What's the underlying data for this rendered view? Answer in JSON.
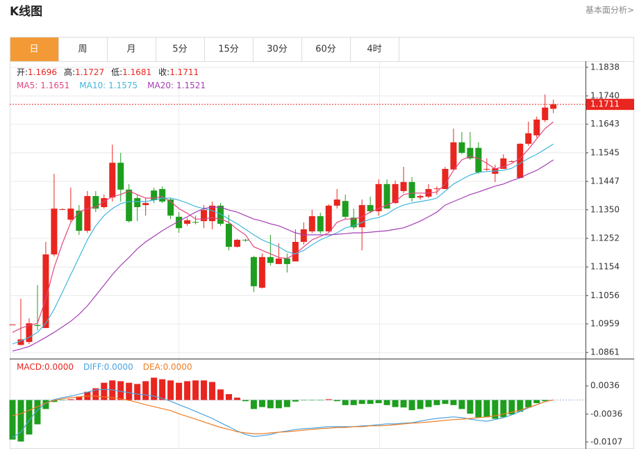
{
  "header": {
    "title": "K线图",
    "link": "基本面分析>"
  },
  "tabs": [
    "日",
    "周",
    "月",
    "5分",
    "15分",
    "30分",
    "60分",
    "4时"
  ],
  "ohlc_info": [
    {
      "label": "开:",
      "value": "1.1696"
    },
    {
      "label": "高:",
      "value": "1.1727"
    },
    {
      "label": "低:",
      "value": "1.1681"
    },
    {
      "label": "收:",
      "value": "1.1711"
    }
  ],
  "chart_data": [
    {
      "type": "candlestick",
      "up_color": "#e8251f",
      "down_color": "#1e9e1e",
      "grid": true,
      "ylim": [
        1.084,
        1.1859
      ],
      "yticks": [
        1.1838,
        {
          "value": 1.174,
          "label": "1.1740"
        },
        1.1643,
        1.1545,
        1.1447,
        {
          "value": 1.135,
          "label": "1.1350"
        },
        1.1252,
        1.1154,
        1.1056,
        1.0959,
        1.0861
      ],
      "price_line": 1.1711,
      "open": [
        1.0957,
        1.0887,
        1.0897,
        1.0955,
        1.0945,
        1.1197,
        1.1352,
        1.1316,
        1.1347,
        1.1278,
        1.1397,
        1.1359,
        1.1392,
        1.1511,
        1.1419,
        1.139,
        1.1366,
        1.1416,
        1.1421,
        1.1385,
        1.1326,
        1.1302,
        1.1308,
        1.1311,
        1.1311,
        1.1364,
        1.1302,
        1.1223,
        1.1247,
        1.1188,
        1.1083,
        1.1188,
        1.1164,
        1.1183,
        1.1173,
        1.124,
        1.1276,
        1.1328,
        1.1276,
        1.1364,
        1.138,
        1.1323,
        1.129,
        1.1366,
        1.1345,
        1.1438,
        1.1373,
        1.1414,
        1.1445,
        1.1392,
        1.1395,
        1.1423,
        1.1421,
        1.1488,
        1.1581,
        1.1562,
        1.1562,
        1.1488,
        1.1473,
        1.149,
        1.1516,
        1.1459,
        1.1576,
        1.1605,
        1.1657,
        1.1696
      ],
      "high": [
        1.0957,
        1.1045,
        1.0978,
        1.1092,
        1.124,
        1.1473,
        1.1355,
        1.1426,
        1.1366,
        1.1414,
        1.1414,
        1.1402,
        1.1573,
        1.1545,
        1.1438,
        1.1402,
        1.139,
        1.1426,
        1.143,
        1.139,
        1.1342,
        1.1322,
        1.133,
        1.1366,
        1.1378,
        1.1373,
        1.1333,
        1.125,
        1.125,
        1.1192,
        1.12,
        1.1264,
        1.1235,
        1.12,
        1.1283,
        1.1307,
        1.135,
        1.134,
        1.1369,
        1.1421,
        1.1402,
        1.1354,
        1.1385,
        1.1395,
        1.1454,
        1.1454,
        1.145,
        1.1497,
        1.1462,
        1.1402,
        1.1438,
        1.143,
        1.1497,
        1.1628,
        1.1616,
        1.1616,
        1.1581,
        1.1526,
        1.1504,
        1.154,
        1.1519,
        1.1578,
        1.1652,
        1.1669,
        1.1745,
        1.1727
      ],
      "low": [
        1.0957,
        1.0885,
        1.089,
        1.0937,
        1.0945,
        1.119,
        1.135,
        1.1306,
        1.1264,
        1.1271,
        1.1342,
        1.1354,
        1.1378,
        1.1378,
        1.1306,
        1.1311,
        1.133,
        1.1373,
        1.1373,
        1.1318,
        1.1271,
        1.1295,
        1.13,
        1.1287,
        1.1283,
        1.1295,
        1.1211,
        1.1221,
        1.124,
        1.1068,
        1.108,
        1.1159,
        1.1164,
        1.1135,
        1.1173,
        1.123,
        1.127,
        1.1268,
        1.1274,
        1.1354,
        1.1318,
        1.1283,
        1.1211,
        1.1338,
        1.133,
        1.1354,
        1.1371,
        1.1407,
        1.1378,
        1.1385,
        1.139,
        1.1402,
        1.1421,
        1.1488,
        1.154,
        1.1521,
        1.1473,
        1.1483,
        1.1445,
        1.149,
        1.1513,
        1.1457,
        1.1569,
        1.1597,
        1.165,
        1.1681
      ],
      "close": [
        1.0957,
        1.0906,
        1.0961,
        1.0952,
        1.1197,
        1.1354,
        1.1352,
        1.1354,
        1.1278,
        1.1397,
        1.1354,
        1.139,
        1.1511,
        1.1419,
        1.1311,
        1.1359,
        1.1373,
        1.1383,
        1.1378,
        1.133,
        1.1287,
        1.1314,
        1.1306,
        1.1349,
        1.1364,
        1.1302,
        1.1223,
        1.1247,
        1.1245,
        1.1088,
        1.1188,
        1.1168,
        1.1183,
        1.1164,
        1.124,
        1.1283,
        1.1328,
        1.1276,
        1.1364,
        1.1385,
        1.1326,
        1.129,
        1.1366,
        1.1345,
        1.1438,
        1.1354,
        1.1438,
        1.1445,
        1.139,
        1.1397,
        1.1421,
        1.1423,
        1.149,
        1.1581,
        1.1545,
        1.1526,
        1.1478,
        1.149,
        1.1492,
        1.1526,
        1.1516,
        1.1576,
        1.1612,
        1.1659,
        1.17,
        1.1711
      ],
      "series": [
        {
          "name": "MA5:",
          "current": "1.1651",
          "color": "#e2457f",
          "values": [
            1.093,
            1.0944,
            1.0954,
            1.0961,
            1.1044,
            1.1152,
            1.1235,
            1.1307,
            1.1342,
            1.1354,
            1.1359,
            1.1378,
            1.1395,
            1.1402,
            1.1414,
            1.1402,
            1.139,
            1.139,
            1.1395,
            1.1378,
            1.1354,
            1.1338,
            1.1318,
            1.1318,
            1.1323,
            1.1318,
            1.1307,
            1.1283,
            1.1264,
            1.1223,
            1.1211,
            1.1199,
            1.1187,
            1.1183,
            1.1199,
            1.1223,
            1.1247,
            1.1259,
            1.1271,
            1.1307,
            1.1318,
            1.1318,
            1.1326,
            1.1342,
            1.1354,
            1.1366,
            1.1378,
            1.1402,
            1.1407,
            1.1407,
            1.1407,
            1.1411,
            1.1438,
            1.1485,
            1.1521,
            1.1533,
            1.1526,
            1.1509,
            1.149,
            1.1497,
            1.1509,
            1.1526,
            1.1557,
            1.1593,
            1.1628,
            1.1651
          ]
        },
        {
          "name": "MA10:",
          "current": "1.1575",
          "color": "#3fb6de",
          "values": [
            1.089,
            1.0901,
            1.0913,
            1.093,
            1.0961,
            1.1009,
            1.1068,
            1.1128,
            1.1187,
            1.1247,
            1.1295,
            1.133,
            1.1354,
            1.1371,
            1.1378,
            1.1378,
            1.1378,
            1.1383,
            1.139,
            1.139,
            1.1383,
            1.1373,
            1.1361,
            1.1354,
            1.1347,
            1.1335,
            1.1318,
            1.1302,
            1.1283,
            1.1264,
            1.1247,
            1.1235,
            1.1223,
            1.1206,
            1.1199,
            1.1211,
            1.123,
            1.1247,
            1.1259,
            1.1271,
            1.1288,
            1.1295,
            1.1307,
            1.1318,
            1.1323,
            1.1335,
            1.1354,
            1.1366,
            1.1373,
            1.1378,
            1.1383,
            1.139,
            1.1414,
            1.1438,
            1.1454,
            1.1469,
            1.1478,
            1.1481,
            1.1483,
            1.1485,
            1.1492,
            1.1509,
            1.1526,
            1.154,
            1.1557,
            1.1575
          ]
        },
        {
          "name": "MA20:",
          "current": "1.1521",
          "color": "#a43db4",
          "values": [
            1.0866,
            1.0873,
            1.0882,
            1.0897,
            1.0913,
            1.093,
            1.0949,
            1.0968,
            1.0992,
            1.1021,
            1.1056,
            1.1092,
            1.1128,
            1.1159,
            1.1187,
            1.1216,
            1.124,
            1.1259,
            1.1278,
            1.1295,
            1.1311,
            1.1326,
            1.1342,
            1.1354,
            1.1359,
            1.1359,
            1.1349,
            1.1342,
            1.133,
            1.1318,
            1.1311,
            1.1302,
            1.1295,
            1.1283,
            1.1271,
            1.1264,
            1.1264,
            1.1264,
            1.1264,
            1.1266,
            1.1268,
            1.1271,
            1.1271,
            1.1273,
            1.1276,
            1.1278,
            1.1283,
            1.1288,
            1.1299,
            1.1311,
            1.1326,
            1.1342,
            1.1366,
            1.1378,
            1.139,
            1.1402,
            1.1411,
            1.1421,
            1.1431,
            1.1438,
            1.145,
            1.1459,
            1.1473,
            1.1485,
            1.1502,
            1.1521
          ]
        }
      ]
    },
    {
      "type": "macd",
      "up_color": "#e8251f",
      "down_color": "#1e9e1e",
      "ylim": [
        -0.0125,
        0.0102
      ],
      "yticks": [
        0.0036,
        -0.0036,
        -0.0107
      ],
      "histogram": {
        "name": "MACD:",
        "current": "0.0000",
        "color": "#e8251f",
        "values": [
          -0.0101,
          -0.0106,
          -0.0088,
          -0.0062,
          -0.0023,
          -0.0005,
          -0.0001,
          0.0002,
          0.0009,
          0.0021,
          0.003,
          0.0044,
          0.005,
          0.0048,
          0.0044,
          0.0041,
          0.0048,
          0.0057,
          0.0053,
          0.005,
          0.0044,
          0.0048,
          0.005,
          0.005,
          0.0046,
          0.0027,
          0.0015,
          0.0006,
          -0.0003,
          -0.0023,
          -0.0018,
          -0.0021,
          -0.0021,
          -0.0018,
          -0.0004,
          -0.0001,
          -0.0001,
          -0.0001,
          0.0002,
          -0.0003,
          -0.0013,
          -0.0013,
          -0.001,
          -0.001,
          -0.0008,
          -0.0013,
          -0.0018,
          -0.0019,
          -0.0026,
          -0.0023,
          -0.0018,
          -0.0013,
          -0.001,
          -0.0013,
          -0.0023,
          -0.0035,
          -0.0044,
          -0.0044,
          -0.0048,
          -0.0044,
          -0.0037,
          -0.003,
          -0.0019,
          -0.0008,
          -0.0003,
          0
        ]
      },
      "series": [
        {
          "name": "DIFF:",
          "current": "0.0000",
          "color": "#4aa3df",
          "values": [
            -0.0096,
            -0.0082,
            -0.0052,
            -0.0026,
            -0.0008,
            0.0001,
            0.0006,
            0.001,
            0.0015,
            0.002,
            0.0026,
            0.0027,
            0.0026,
            0.0022,
            0.0019,
            0.0015,
            0.0013,
            0.001,
            0.0004,
            -0.0003,
            -0.0012,
            -0.002,
            -0.0029,
            -0.0038,
            -0.0047,
            -0.0058,
            -0.0068,
            -0.0079,
            -0.0088,
            -0.0093,
            -0.0091,
            -0.0088,
            -0.0082,
            -0.0079,
            -0.0075,
            -0.0073,
            -0.0072,
            -0.007,
            -0.0068,
            -0.0068,
            -0.0068,
            -0.0068,
            -0.0066,
            -0.0065,
            -0.0063,
            -0.0061,
            -0.0061,
            -0.0059,
            -0.0058,
            -0.0054,
            -0.005,
            -0.0047,
            -0.0045,
            -0.0043,
            -0.0045,
            -0.0049,
            -0.0052,
            -0.0054,
            -0.005,
            -0.0045,
            -0.0038,
            -0.0029,
            -0.002,
            -0.0012,
            -0.0004,
            0
          ]
        },
        {
          "name": "DEA:",
          "current": "0.0000",
          "color": "#f07c22",
          "values": [
            -0.004,
            -0.0035,
            -0.0026,
            -0.0017,
            -0.0008,
            -0.0001,
            0.0003,
            0.0006,
            0.0008,
            0.001,
            0.001,
            0.0008,
            0.0006,
            0.0003,
            -0.0001,
            -0.0006,
            -0.0012,
            -0.0017,
            -0.0022,
            -0.0027,
            -0.0035,
            -0.0042,
            -0.0049,
            -0.0056,
            -0.0063,
            -0.007,
            -0.0075,
            -0.0081,
            -0.0084,
            -0.0086,
            -0.0086,
            -0.0084,
            -0.0082,
            -0.0081,
            -0.0079,
            -0.0077,
            -0.0075,
            -0.0073,
            -0.0072,
            -0.007,
            -0.007,
            -0.0068,
            -0.0068,
            -0.0066,
            -0.0066,
            -0.0065,
            -0.0063,
            -0.0061,
            -0.0059,
            -0.0058,
            -0.0056,
            -0.0054,
            -0.0052,
            -0.005,
            -0.0049,
            -0.0047,
            -0.0045,
            -0.0043,
            -0.004,
            -0.0036,
            -0.0031,
            -0.0026,
            -0.0019,
            -0.0012,
            -0.0004,
            0
          ]
        }
      ]
    }
  ]
}
